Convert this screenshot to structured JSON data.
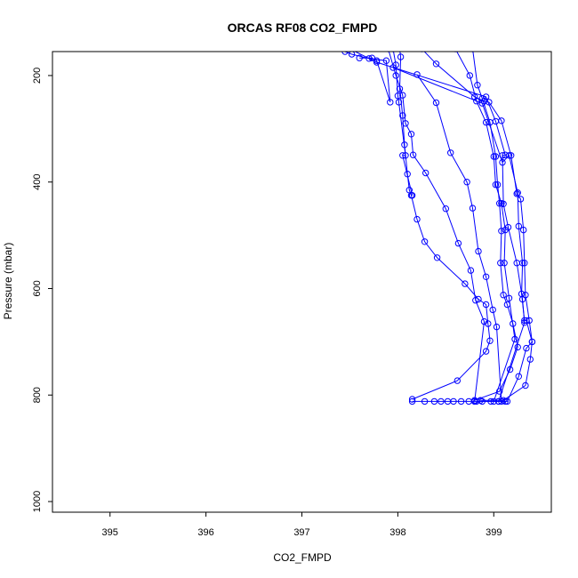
{
  "chart_data": {
    "type": "line",
    "title": "ORCAS RF08 CO2_FMPD",
    "xlabel": "CO2_FMPD",
    "ylabel": "Pressure (mbar)",
    "xlim": [
      394.4,
      399.6
    ],
    "ylim": [
      1020,
      155
    ],
    "y_reversed": true,
    "grid": false,
    "legend": "none",
    "x_ticks": [
      395,
      396,
      397,
      398,
      399
    ],
    "y_ticks": [
      200,
      400,
      600,
      800,
      1000
    ],
    "series_color": "#0000ff",
    "marker": "open-circle",
    "series": [
      {
        "values": [
          [
            398.15,
            812
          ],
          [
            398.28,
            812
          ],
          [
            398.38,
            812
          ],
          [
            398.45,
            812
          ],
          [
            398.52,
            812
          ],
          [
            398.58,
            812
          ],
          [
            398.66,
            812
          ],
          [
            398.74,
            812
          ],
          [
            398.8,
            812
          ],
          [
            398.88,
            812
          ],
          [
            398.97,
            812
          ],
          [
            399.05,
            812
          ],
          [
            399.12,
            812
          ]
        ]
      },
      {
        "values": [
          [
            398.15,
            808
          ],
          [
            398.62,
            773
          ],
          [
            398.92,
            718
          ],
          [
            398.96,
            698
          ],
          [
            398.94,
            666
          ],
          [
            398.92,
            630
          ],
          [
            398.84,
            620
          ],
          [
            398.7,
            591
          ],
          [
            398.41,
            542
          ],
          [
            398.28,
            512
          ],
          [
            398.2,
            470
          ],
          [
            398.14,
            425
          ],
          [
            398.12,
            415
          ],
          [
            398.1,
            385
          ],
          [
            398.07,
            330
          ],
          [
            398.05,
            275
          ],
          [
            398.02,
            225
          ],
          [
            398.03,
            165
          ],
          [
            398.02,
            150
          ]
        ]
      },
      {
        "values": [
          [
            398.8,
            810
          ],
          [
            399.06,
            793
          ],
          [
            399.17,
            752
          ],
          [
            399.25,
            710
          ],
          [
            399.2,
            666
          ],
          [
            399.14,
            630
          ],
          [
            399.1,
            612
          ],
          [
            399.07,
            552
          ],
          [
            399.08,
            492
          ],
          [
            399.06,
            440
          ],
          [
            399.04,
            405
          ],
          [
            399.02,
            352
          ],
          [
            398.96,
            288
          ],
          [
            398.88,
            243
          ],
          [
            398.83,
            218
          ],
          [
            398.78,
            150
          ]
        ]
      },
      {
        "values": [
          [
            398.86,
            810
          ],
          [
            399.1,
            810
          ],
          [
            399.33,
            782
          ],
          [
            399.38,
            733
          ],
          [
            399.4,
            700
          ],
          [
            399.37,
            660
          ],
          [
            399.33,
            612
          ],
          [
            399.32,
            552
          ],
          [
            399.31,
            490
          ],
          [
            399.28,
            432
          ],
          [
            399.24,
            422
          ],
          [
            399.18,
            350
          ],
          [
            399.08,
            285
          ],
          [
            398.95,
            250
          ],
          [
            398.9,
            248
          ],
          [
            398.8,
            240
          ],
          [
            398.4,
            178
          ],
          [
            398.25,
            150
          ]
        ]
      },
      {
        "values": [
          [
            398.82,
            812
          ],
          [
            399.14,
            812
          ],
          [
            399.26,
            765
          ],
          [
            399.34,
            712
          ],
          [
            399.4,
            700
          ],
          [
            399.34,
            660
          ],
          [
            399.32,
            660
          ],
          [
            399.29,
            610
          ],
          [
            399.3,
            552
          ],
          [
            399.26,
            483
          ],
          [
            399.25,
            420
          ],
          [
            399.16,
            350
          ],
          [
            399.09,
            363
          ],
          [
            398.88,
            252
          ],
          [
            397.95,
            185
          ]
        ]
      },
      {
        "values": [
          [
            399.08,
            812
          ],
          [
            399.03,
            672
          ],
          [
            398.99,
            640
          ],
          [
            398.92,
            578
          ],
          [
            398.84,
            530
          ],
          [
            398.78,
            449
          ],
          [
            398.72,
            400
          ],
          [
            398.55,
            345
          ],
          [
            398.4,
            251
          ],
          [
            398.2,
            198
          ]
        ]
      },
      {
        "values": [
          [
            398.8,
            812
          ],
          [
            398.9,
            662
          ],
          [
            398.81,
            622
          ],
          [
            398.76,
            566
          ],
          [
            398.63,
            515
          ],
          [
            398.5,
            450
          ],
          [
            398.29,
            383
          ],
          [
            398.16,
            349
          ],
          [
            398.14,
            310
          ],
          [
            398.08,
            290
          ],
          [
            398.05,
            237
          ],
          [
            397.98,
            200
          ],
          [
            397.9,
            150
          ]
        ]
      },
      {
        "values": [
          [
            399.0,
            812
          ],
          [
            399.22,
            695
          ],
          [
            399.16,
            618
          ],
          [
            399.11,
            552
          ],
          [
            399.12,
            490
          ],
          [
            399.08,
            440
          ],
          [
            399.02,
            405
          ],
          [
            399.0,
            352
          ],
          [
            398.92,
            288
          ],
          [
            398.82,
            248
          ],
          [
            398.75,
            200
          ],
          [
            398.6,
            150
          ]
        ]
      },
      {
        "values": [
          [
            399.05,
            812
          ],
          [
            399.32,
            664
          ],
          [
            399.3,
            620
          ],
          [
            399.24,
            552
          ],
          [
            399.15,
            485
          ],
          [
            399.1,
            441
          ],
          [
            399.09,
            350
          ],
          [
            399.12,
            349
          ],
          [
            399.02,
            286
          ],
          [
            398.92,
            240
          ],
          [
            397.78,
            175
          ],
          [
            397.5,
            150
          ]
        ]
      },
      {
        "values": [
          [
            398.15,
            425
          ],
          [
            398.05,
            350
          ],
          [
            398.08,
            350
          ],
          [
            398.01,
            250
          ],
          [
            398.0,
            238
          ],
          [
            397.98,
            180
          ],
          [
            397.95,
            150
          ]
        ]
      },
      {
        "values": [
          [
            397.6,
            167
          ],
          [
            397.73,
            167
          ],
          [
            397.78,
            172
          ],
          [
            397.92,
            250
          ],
          [
            397.88,
            172
          ],
          [
            397.7,
            168
          ],
          [
            397.52,
            160
          ],
          [
            397.45,
            155
          ]
        ]
      }
    ]
  }
}
